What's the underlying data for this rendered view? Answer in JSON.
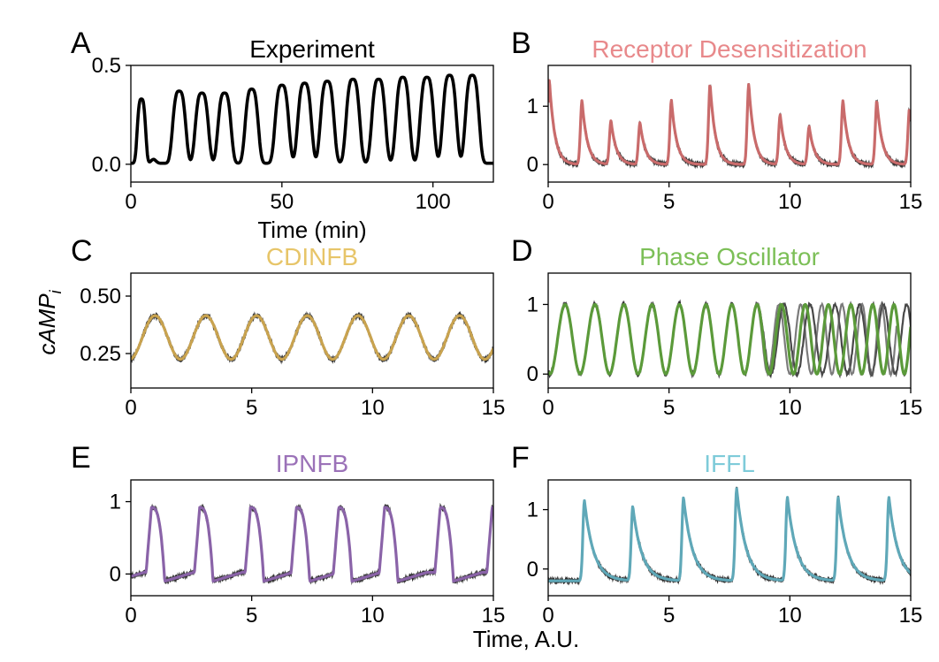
{
  "figure": {
    "ylabel": "cAMP",
    "ylabel_sub": "i",
    "xlabel_shared": "Time, A.U."
  },
  "chart_data": [
    {
      "panel": "A",
      "type": "line",
      "title": "Experiment",
      "title_color": "#000000",
      "xlabel": "Time (min)",
      "xlim": [
        0,
        120
      ],
      "ylim": [
        -0.09,
        0.5
      ],
      "xticks": [
        0,
        50,
        100
      ],
      "yticks": [
        0.0,
        0.5
      ],
      "ytick_labels": [
        "0.0",
        "0.5"
      ],
      "series": [
        {
          "color": "#000000",
          "kind": "pulses",
          "baseline": 0.005,
          "peaks_x": [
            3.5,
            16,
            23.5,
            31,
            40,
            50,
            57.5,
            65,
            73.5,
            82,
            90,
            98,
            105.5,
            113
          ],
          "peaks_y": [
            0.33,
            0.37,
            0.36,
            0.36,
            0.38,
            0.4,
            0.41,
            0.42,
            0.43,
            0.43,
            0.44,
            0.44,
            0.45,
            0.45
          ],
          "widths": [
            1.6,
            2.5,
            2.5,
            2.5,
            2.5,
            2.6,
            2.6,
            2.6,
            2.6,
            2.6,
            2.6,
            2.6,
            2.6,
            2.6
          ]
        }
      ]
    },
    {
      "panel": "B",
      "type": "line",
      "title": "Receptor Desensitization",
      "title_color": "#e8898b",
      "xlim": [
        0,
        15
      ],
      "ylim": [
        -0.3,
        1.7
      ],
      "xticks": [
        0,
        5,
        10,
        15
      ],
      "yticks": [
        0,
        1
      ],
      "ytick_labels": [
        "0",
        "1"
      ],
      "series": [
        {
          "color": "#c96b6b",
          "kind": "spikes",
          "baseline": 0.0,
          "peaks_x": [
            0.05,
            1.4,
            2.6,
            3.8,
            5.1,
            6.7,
            8.3,
            9.6,
            10.8,
            12.2,
            13.6,
            14.95
          ],
          "peaks_y": [
            1.45,
            1.1,
            0.75,
            0.72,
            1.1,
            1.38,
            1.38,
            0.85,
            0.65,
            1.1,
            1.1,
            0.95
          ]
        }
      ]
    },
    {
      "panel": "C",
      "type": "line",
      "title": "CDINFB",
      "title_color": "#e7c569",
      "xlim": [
        0,
        15
      ],
      "ylim": [
        0.1,
        0.6
      ],
      "xticks": [
        0,
        5,
        10,
        15
      ],
      "yticks": [
        0.25,
        0.5
      ],
      "ytick_labels": [
        "0.25",
        "0.50"
      ],
      "series": [
        {
          "color": "#c9a34f",
          "kind": "sine",
          "mean": 0.32,
          "amplitude": 0.095,
          "period": 2.1,
          "peak_x": 1.0
        }
      ]
    },
    {
      "panel": "D",
      "type": "line",
      "title": "Phase Oscillator",
      "title_color": "#7cbf57",
      "xlim": [
        0,
        15
      ],
      "ylim": [
        -0.2,
        1.45
      ],
      "xticks": [
        0,
        5,
        10,
        15
      ],
      "yticks": [
        0,
        1
      ],
      "ytick_labels": [
        "0",
        "1"
      ],
      "series": [
        {
          "color": "#5b9a3a",
          "kind": "chirp",
          "first_peak_x": 0.7,
          "last_peak_x": 14.9,
          "n_peaks": 14,
          "min": 0.0,
          "max": 1.0
        }
      ]
    },
    {
      "panel": "E",
      "type": "line",
      "title": "IPNFB",
      "title_color": "#9b72b8",
      "xlim": [
        0,
        15
      ],
      "ylim": [
        -0.3,
        1.3
      ],
      "xticks": [
        0,
        5,
        10,
        15
      ],
      "yticks": [
        0,
        1
      ],
      "ytick_labels": [
        "0",
        "1"
      ],
      "series": [
        {
          "color": "#8a63a8",
          "kind": "relax",
          "peaks_x": [
            0.85,
            2.85,
            4.95,
            6.85,
            8.6,
            10.5,
            12.8,
            14.95
          ],
          "peak_y": 0.92,
          "trough_y": -0.1
        }
      ]
    },
    {
      "panel": "F",
      "type": "line",
      "title": "IFFL",
      "title_color": "#7ecbd9",
      "xlim": [
        0,
        15
      ],
      "ylim": [
        -0.45,
        1.5
      ],
      "xticks": [
        0,
        5,
        10,
        15
      ],
      "yticks": [
        0,
        1
      ],
      "ytick_labels": [
        "0",
        "1"
      ],
      "series": [
        {
          "color": "#5fa8b8",
          "kind": "spikes2",
          "baseline": -0.2,
          "peaks_x": [
            1.5,
            3.5,
            5.6,
            7.8,
            9.9,
            12.0,
            14.1
          ],
          "peaks_y": [
            1.15,
            1.05,
            1.2,
            1.35,
            1.2,
            1.2,
            1.2
          ]
        }
      ]
    }
  ]
}
